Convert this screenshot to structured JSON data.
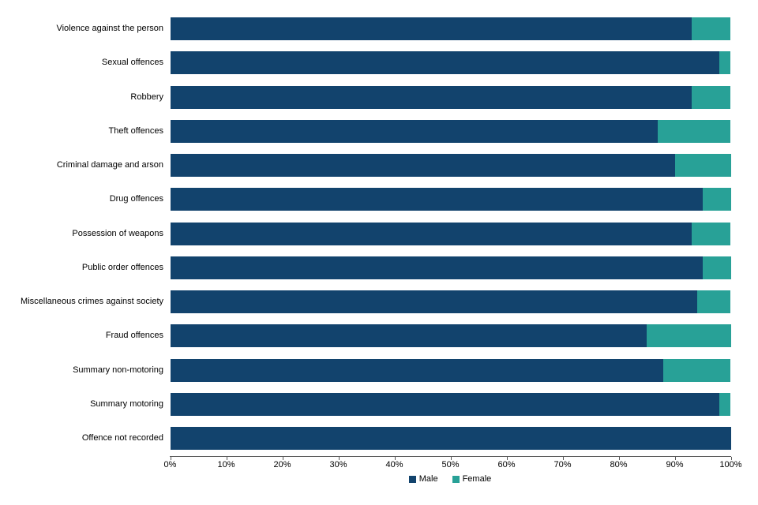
{
  "chart_data": {
    "type": "bar",
    "orientation": "horizontal",
    "stacked": true,
    "unit": "percent",
    "title": "",
    "xlabel": "",
    "ylabel": "",
    "xlim": [
      0,
      100
    ],
    "grid": false,
    "categories": [
      "Violence against the person",
      "Sexual offences",
      "Robbery",
      "Theft offences",
      "Criminal damage and arson",
      "Drug offences",
      "Possession of weapons",
      "Public order offences",
      "Miscellaneous crimes against society",
      "Fraud offences",
      "Summary non-motoring",
      "Summary motoring",
      "Offence not recorded"
    ],
    "series": [
      {
        "name": "Male",
        "color": "#12436D",
        "values": [
          93,
          98,
          93,
          87,
          90,
          95,
          93,
          95,
          94,
          85,
          88,
          98,
          100
        ]
      },
      {
        "name": "Female",
        "color": "#28A197",
        "values": [
          7,
          2,
          7,
          13,
          10,
          5,
          7,
          5,
          6,
          15,
          12,
          2,
          0
        ]
      }
    ],
    "x_ticks": [
      "0%",
      "10%",
      "20%",
      "30%",
      "40%",
      "50%",
      "60%",
      "70%",
      "80%",
      "90%",
      "100%"
    ],
    "legend": {
      "position": "bottom",
      "entries": [
        "Male",
        "Female"
      ]
    },
    "axis_color": "#595959",
    "text_color": "#000000"
  }
}
